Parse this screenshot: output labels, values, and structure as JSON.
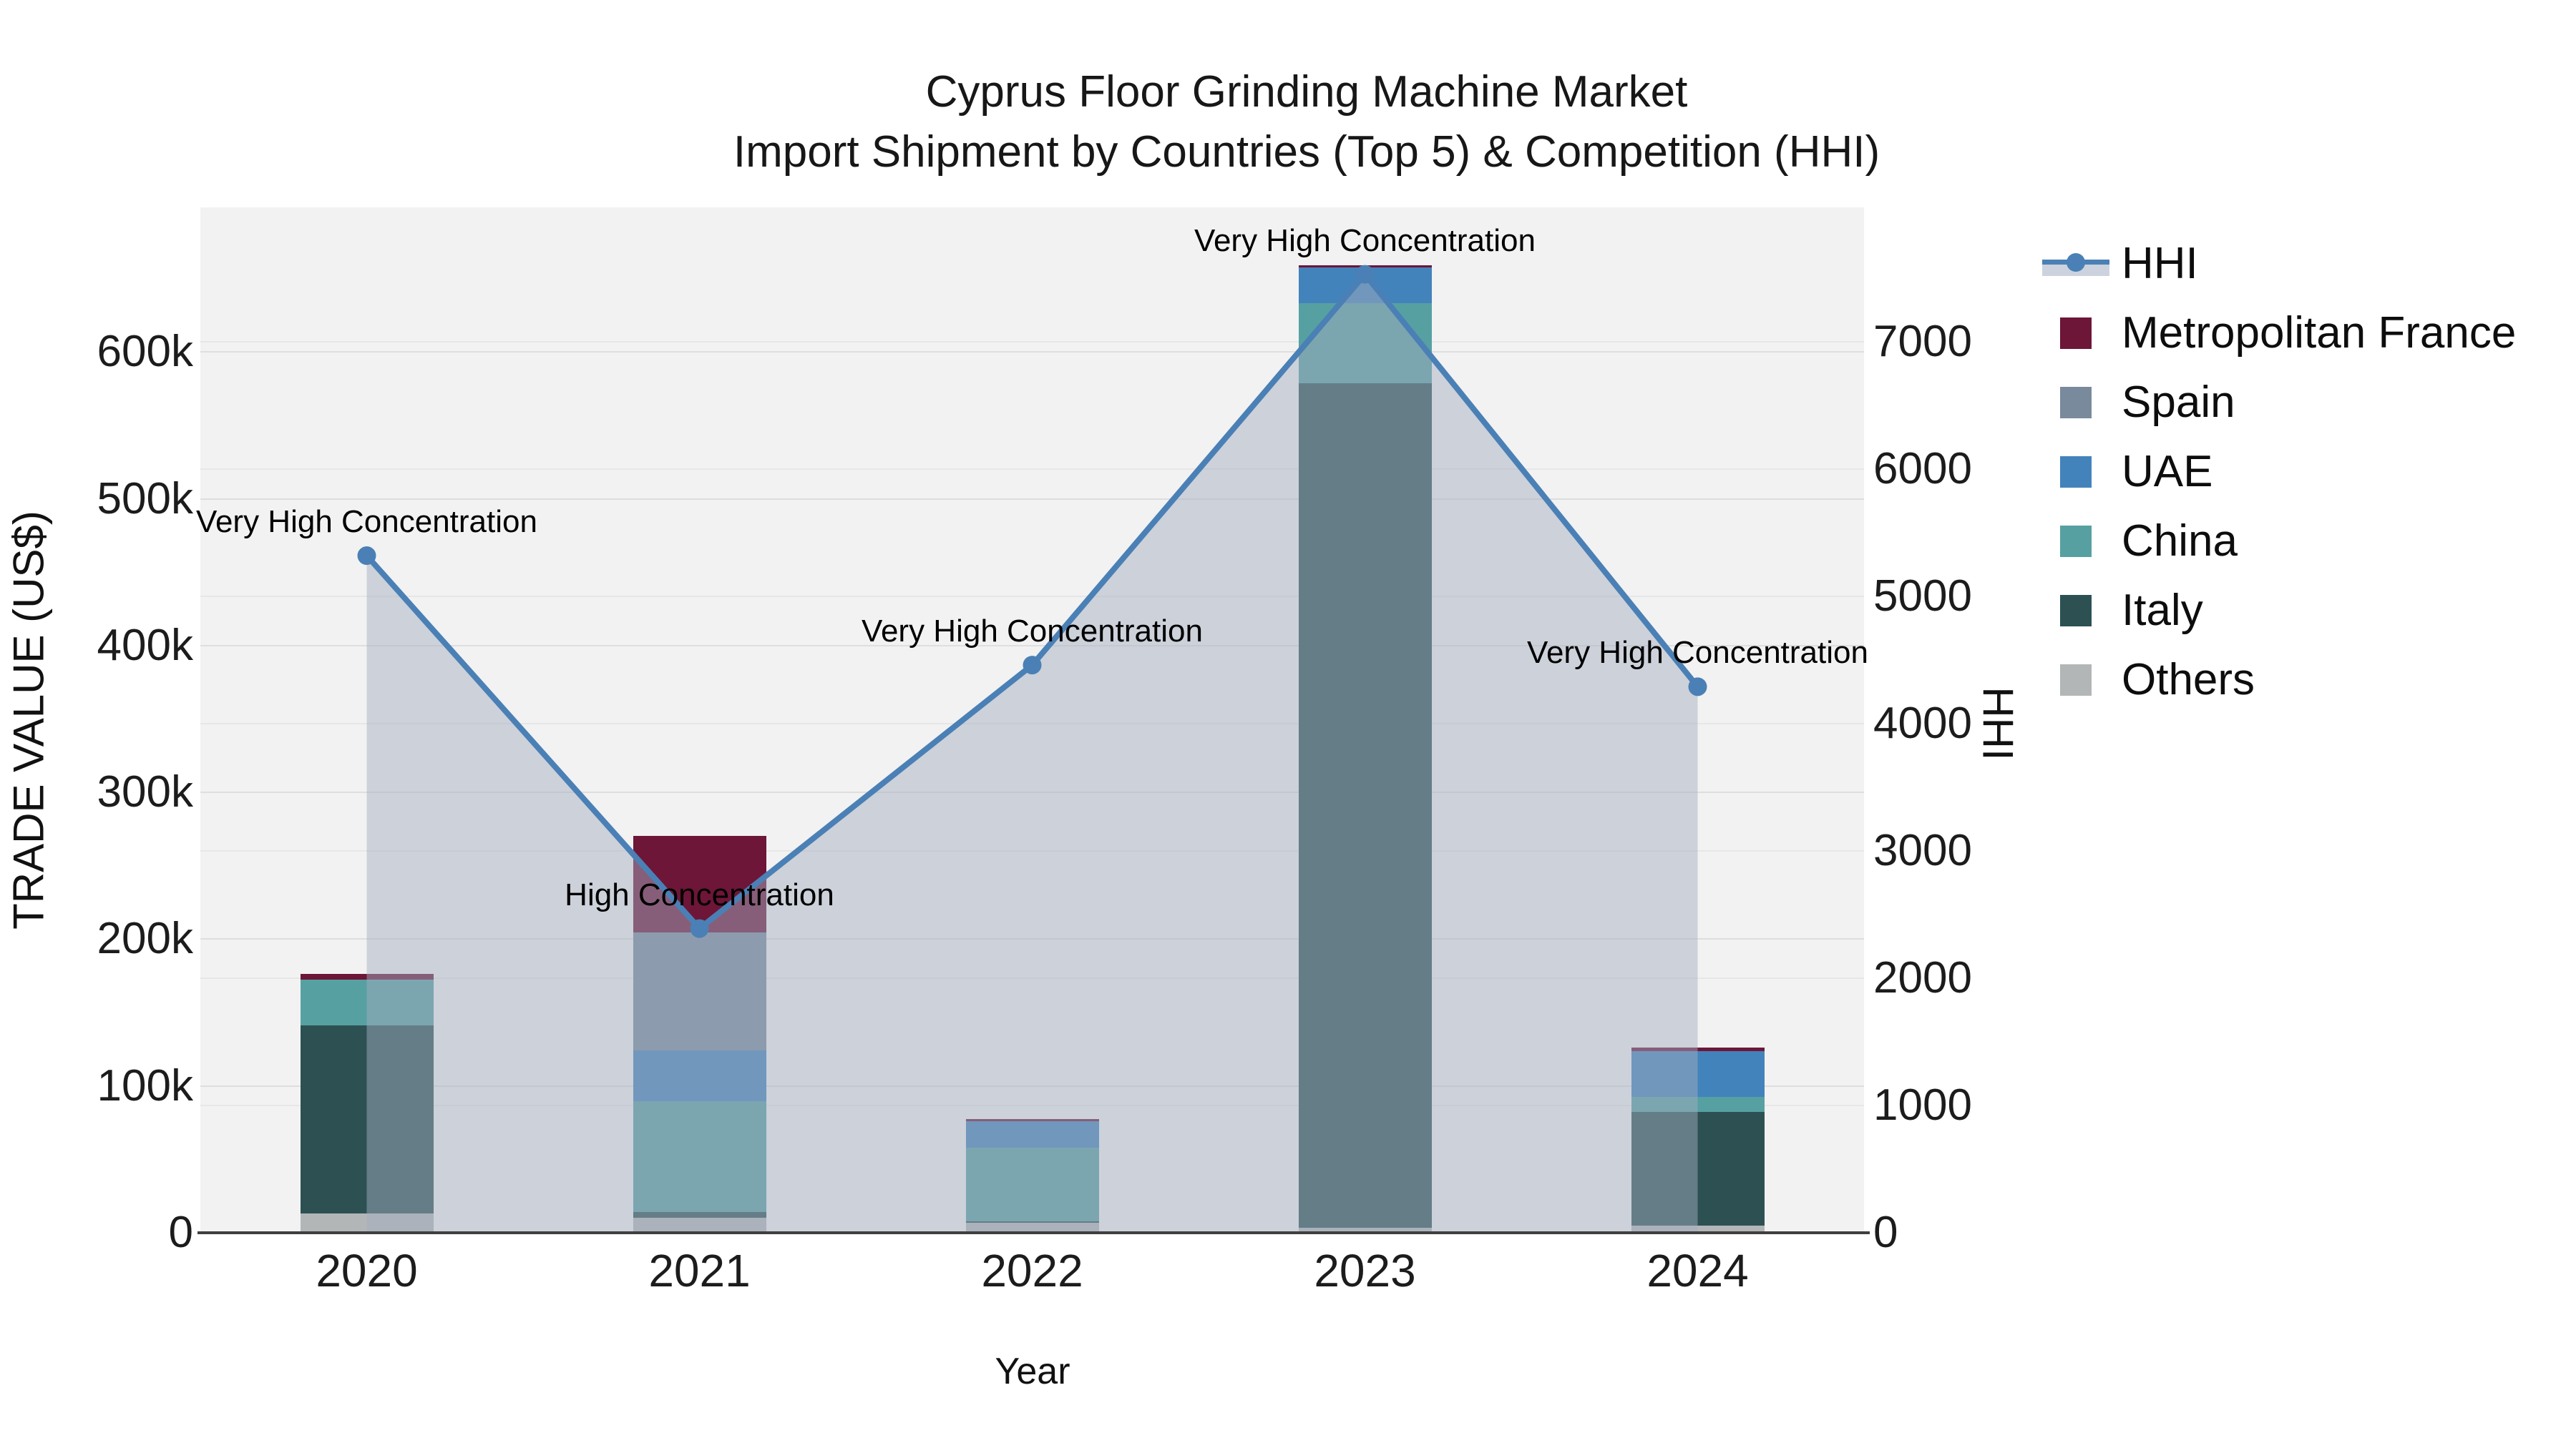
{
  "title": {
    "line1": "Cyprus Floor Grinding Machine Market",
    "line2": "Import Shipment by Countries (Top 5) & Competition (HHI)"
  },
  "axes": {
    "x_label": "Year",
    "y_left_label": "TRADE VALUE (US$)",
    "y_right_label": "HHI",
    "y_left_ticks": [
      {
        "label": "0",
        "value": 0
      },
      {
        "label": "100k",
        "value": 100000
      },
      {
        "label": "200k",
        "value": 200000
      },
      {
        "label": "300k",
        "value": 300000
      },
      {
        "label": "400k",
        "value": 400000
      },
      {
        "label": "500k",
        "value": 500000
      },
      {
        "label": "600k",
        "value": 600000
      }
    ],
    "y_right_ticks": [
      {
        "label": "0",
        "value": 0
      },
      {
        "label": "1000",
        "value": 1000
      },
      {
        "label": "2000",
        "value": 2000
      },
      {
        "label": "3000",
        "value": 3000
      },
      {
        "label": "4000",
        "value": 4000
      },
      {
        "label": "5000",
        "value": 5000
      },
      {
        "label": "6000",
        "value": 6000
      },
      {
        "label": "7000",
        "value": 7000
      }
    ]
  },
  "chart_data": {
    "type": "combo-stacked-bar-line",
    "categories": [
      "2020",
      "2021",
      "2022",
      "2023",
      "2024"
    ],
    "bar_unit": "US$",
    "series": [
      {
        "name": "Others",
        "color": "#b3b6b7",
        "values": [
          13000,
          10000,
          7000,
          3500,
          5000
        ]
      },
      {
        "name": "Italy",
        "color": "#2d5153",
        "values": [
          128500,
          4000,
          1000,
          575000,
          77500
        ]
      },
      {
        "name": "China",
        "color": "#57a0a2",
        "values": [
          31000,
          75500,
          50000,
          54500,
          10000
        ]
      },
      {
        "name": "UAE",
        "color": "#4383bb",
        "values": [
          0,
          34500,
          18000,
          24500,
          31000
        ]
      },
      {
        "name": "Spain",
        "color": "#7a8a9d",
        "values": [
          0,
          80500,
          0,
          0,
          0
        ]
      },
      {
        "name": "Metropolitan France",
        "color": "#6d1638",
        "values": [
          4000,
          66000,
          1500,
          1500,
          2500
        ]
      }
    ],
    "bar_totals": [
      176500,
      270500,
      77500,
      659000,
      126000
    ],
    "line_series": {
      "name": "HHI",
      "color": "#4a80b5",
      "area_color": "rgba(162,174,193,0.48)",
      "values": [
        5320,
        2390,
        4460,
        7530,
        4290
      ]
    },
    "annotations": [
      {
        "category": "2020",
        "text": "Very High Concentration"
      },
      {
        "category": "2021",
        "text": "High Concentration"
      },
      {
        "category": "2022",
        "text": "Very High Concentration"
      },
      {
        "category": "2023",
        "text": "Very High Concentration"
      },
      {
        "category": "2024",
        "text": "Very High Concentration"
      }
    ],
    "axis_ranges": {
      "y_left": [
        0,
        698500
      ],
      "y_right": [
        0,
        8056
      ]
    },
    "grid": "horizontal-both-axes",
    "legend_position": "right-outside"
  },
  "legend": {
    "items": [
      {
        "label": "HHI",
        "type": "line",
        "color": "#4a80b5"
      },
      {
        "label": "Metropolitan France",
        "type": "swatch",
        "color": "#6d1638"
      },
      {
        "label": "Spain",
        "type": "swatch",
        "color": "#7a8a9d"
      },
      {
        "label": "UAE",
        "type": "swatch",
        "color": "#4383bb"
      },
      {
        "label": "China",
        "type": "swatch",
        "color": "#57a0a2"
      },
      {
        "label": "Italy",
        "type": "swatch",
        "color": "#2d5153"
      },
      {
        "label": "Others",
        "type": "swatch",
        "color": "#b3b6b7"
      }
    ]
  },
  "colors": {
    "plot_bg": "#f2f2f2",
    "page_bg": "#ffffff",
    "grid_left": "#dedede",
    "grid_right": "#e7e7e7",
    "axis_line": "#3f3f3f",
    "text": "#171717"
  }
}
